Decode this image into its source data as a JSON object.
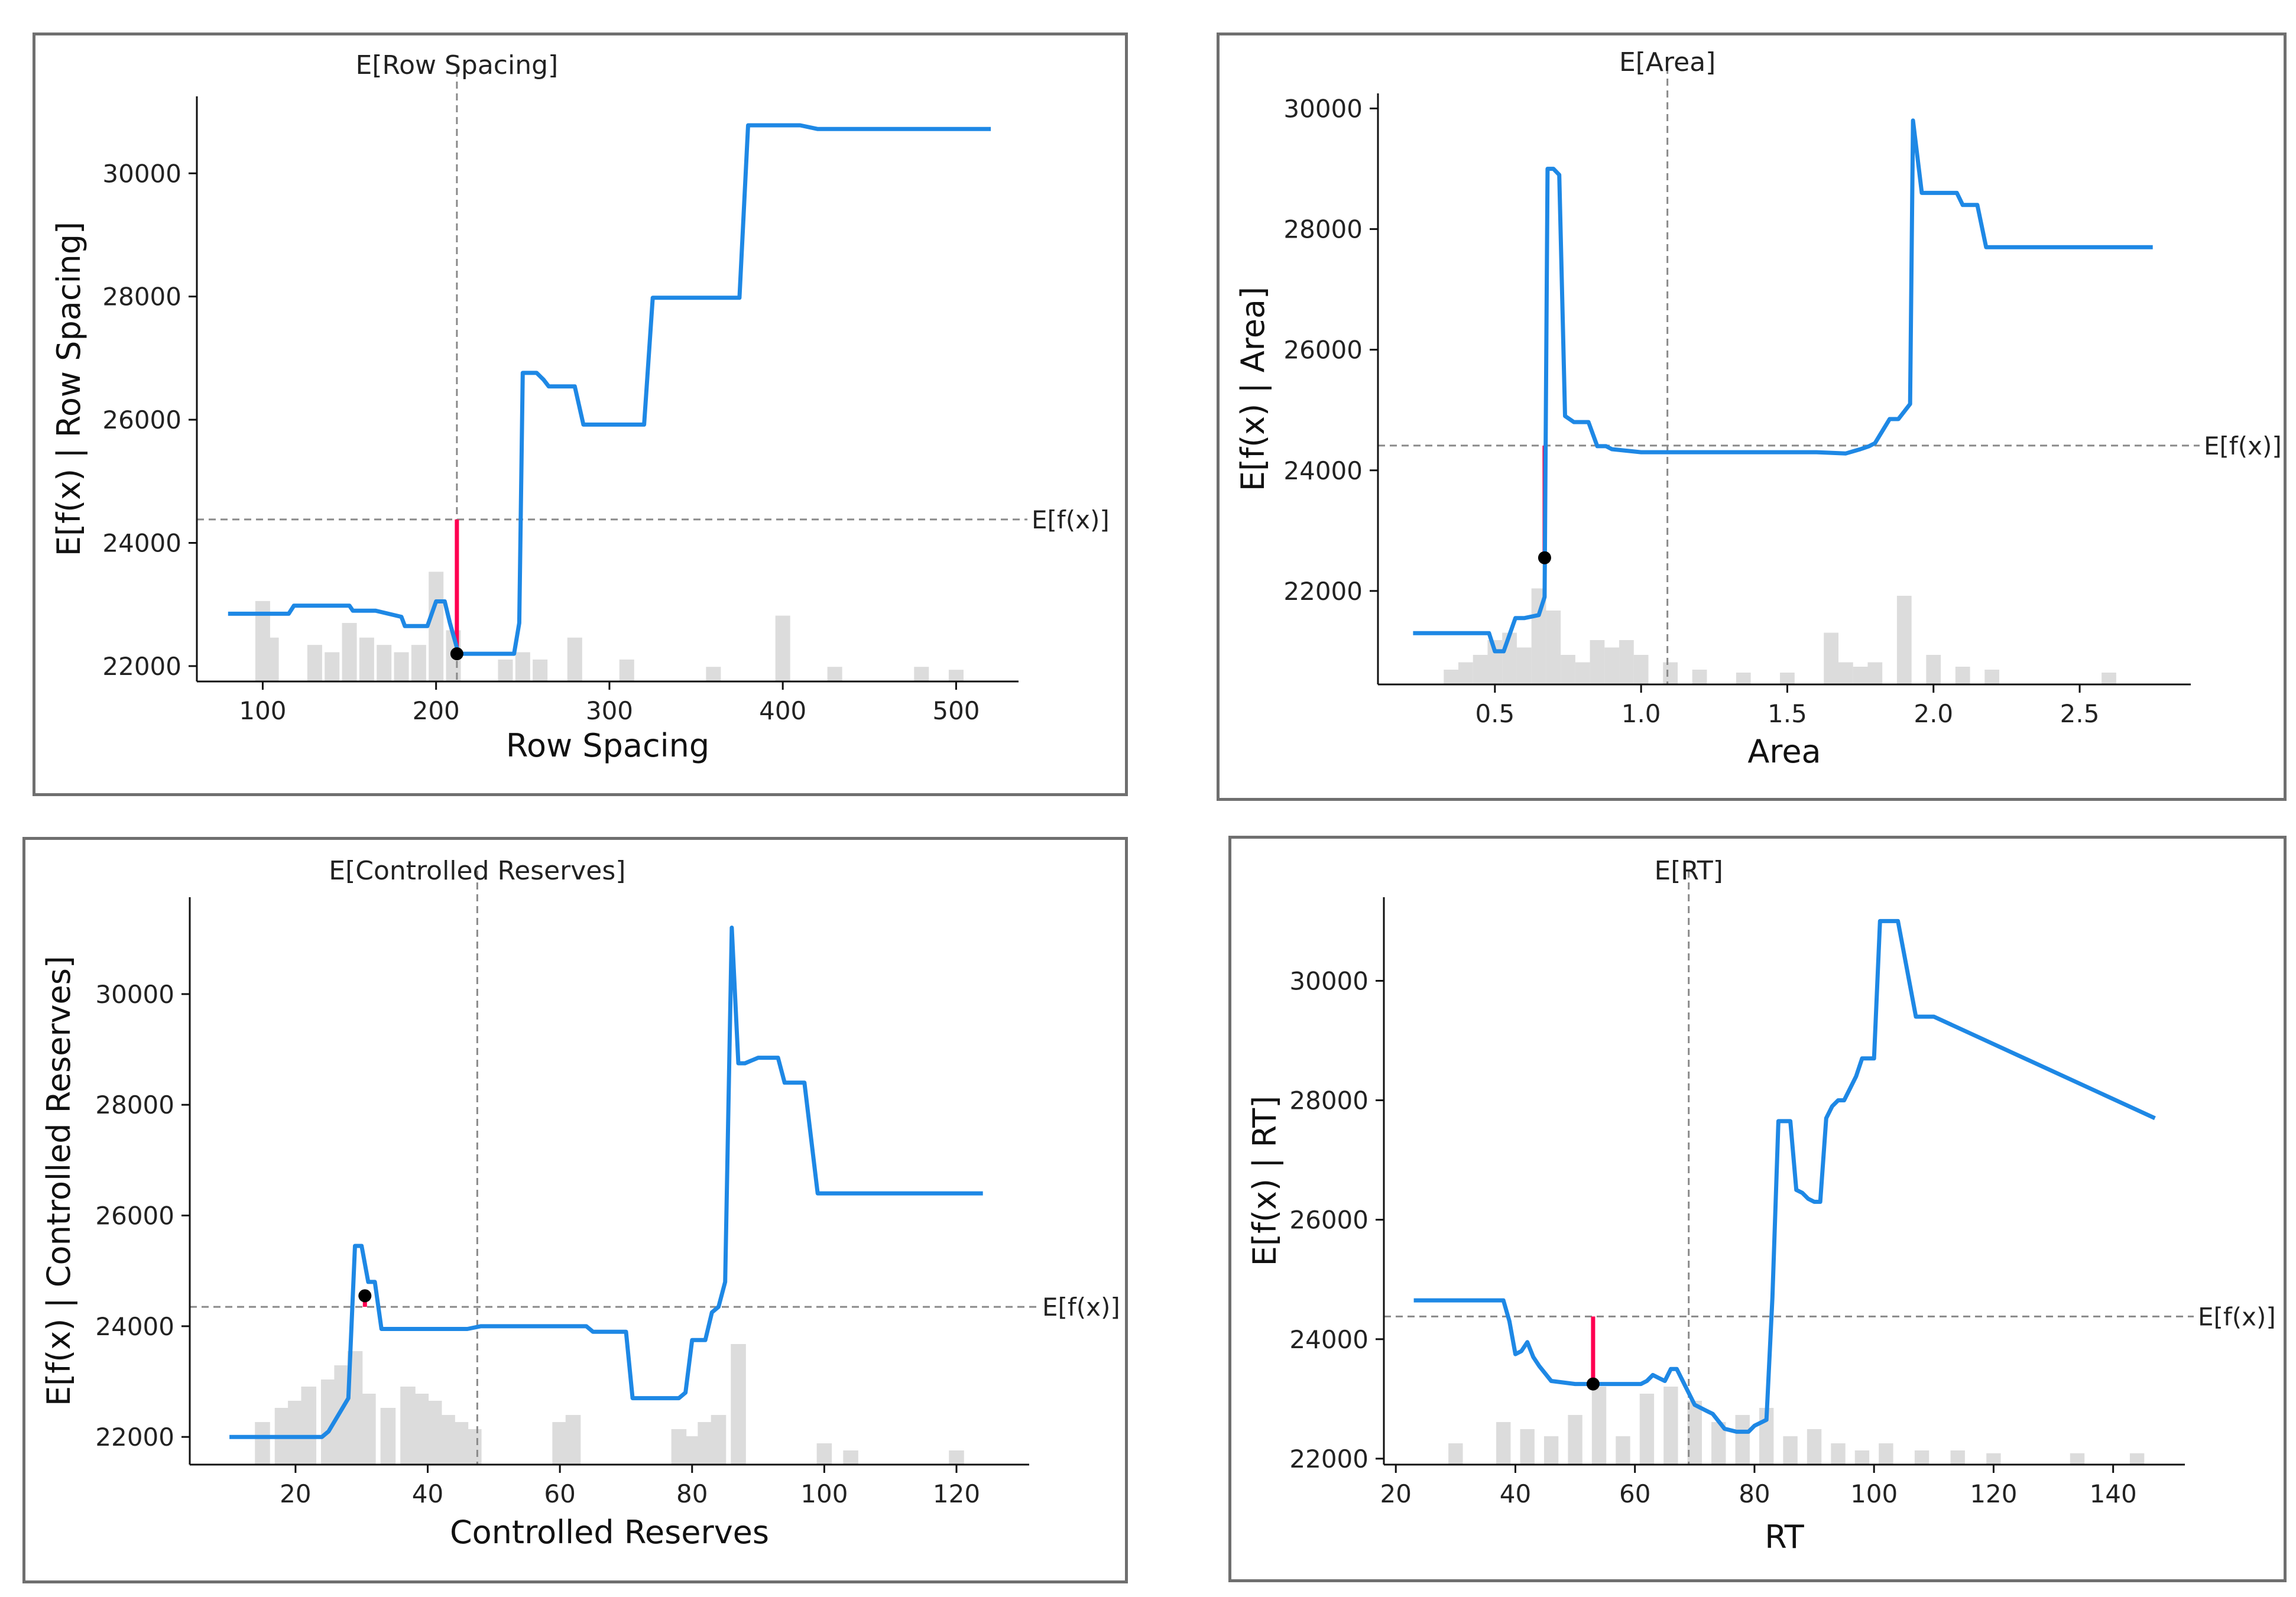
{
  "chart_data": [
    {
      "type": "line",
      "title": "E[Row Spacing]",
      "xlabel": "Row Spacing",
      "ylabel": "E[f(x) | Row Spacing]",
      "efx_label": "E[f(x)]",
      "xlim": [
        62,
        536
      ],
      "ylim": [
        21750,
        31250
      ],
      "xticks": [
        100,
        200,
        300,
        400,
        500
      ],
      "xtick_labels": [
        "100",
        "200",
        "300",
        "400",
        "500"
      ],
      "yticks": [
        22000,
        24000,
        26000,
        28000,
        30000
      ],
      "ytick_labels": [
        "22000",
        "24000",
        "26000",
        "28000",
        "30000"
      ],
      "expected_value_x": 212,
      "efx": 24380,
      "line": {
        "x": [
          80,
          115,
          118,
          135,
          150,
          152,
          165,
          180,
          182,
          195,
          200,
          205,
          208,
          213,
          220,
          240,
          245,
          248,
          250,
          255,
          258,
          262,
          265,
          280,
          285,
          300,
          315,
          320,
          325,
          345,
          375,
          380,
          390,
          400,
          410,
          420,
          520
        ],
        "y": [
          22850,
          22850,
          22980,
          22980,
          22980,
          22900,
          22900,
          22800,
          22650,
          22650,
          23050,
          23050,
          22700,
          22200,
          22200,
          22200,
          22200,
          22700,
          26760,
          26760,
          26760,
          26650,
          26540,
          26540,
          25920,
          25920,
          25920,
          25920,
          27980,
          27980,
          27980,
          30780,
          30780,
          30780,
          30780,
          30720,
          30720
        ]
      },
      "instance": {
        "x": 212,
        "y": 22200
      },
      "hist": {
        "x": [
          100,
          105,
          130,
          140,
          150,
          160,
          170,
          180,
          190,
          200,
          210,
          240,
          250,
          260,
          280,
          310,
          360,
          400,
          430,
          480,
          500
        ],
        "h": [
          0.55,
          0.3,
          0.25,
          0.2,
          0.4,
          0.3,
          0.25,
          0.2,
          0.25,
          0.75,
          0.35,
          0.15,
          0.2,
          0.15,
          0.3,
          0.15,
          0.1,
          0.45,
          0.1,
          0.1,
          0.08
        ]
      }
    },
    {
      "type": "line",
      "title": "E[Area]",
      "xlabel": "Area",
      "ylabel": "E[f(x) | Area]",
      "efx_label": "E[f(x)]",
      "xlim": [
        0.1,
        2.88
      ],
      "ylim": [
        20450,
        30250
      ],
      "xticks": [
        0.5,
        1.0,
        1.5,
        2.0,
        2.5
      ],
      "xtick_labels": [
        "0.5",
        "1.0",
        "1.5",
        "2.0",
        "2.5"
      ],
      "yticks": [
        22000,
        24000,
        26000,
        28000,
        30000
      ],
      "ytick_labels": [
        "22000",
        "24000",
        "26000",
        "28000",
        "30000"
      ],
      "expected_value_x": 1.09,
      "efx": 24410,
      "line": {
        "x": [
          0.22,
          0.45,
          0.48,
          0.5,
          0.53,
          0.57,
          0.6,
          0.65,
          0.67,
          0.68,
          0.7,
          0.72,
          0.74,
          0.77,
          0.8,
          0.82,
          0.85,
          0.88,
          0.9,
          1.0,
          1.2,
          1.4,
          1.6,
          1.7,
          1.75,
          1.78,
          1.8,
          1.85,
          1.88,
          1.92,
          1.93,
          1.96,
          2.08,
          2.1,
          2.15,
          2.18,
          2.75
        ],
        "y": [
          21300,
          21300,
          21300,
          21000,
          21000,
          21550,
          21550,
          21600,
          21900,
          29000,
          29000,
          28900,
          24900,
          24800,
          24800,
          24800,
          24400,
          24400,
          24350,
          24300,
          24300,
          24300,
          24300,
          24280,
          24350,
          24400,
          24450,
          24850,
          24850,
          25100,
          29800,
          28600,
          28600,
          28400,
          28400,
          27700,
          27700
        ]
      },
      "instance": {
        "x": 0.67,
        "y": 22550
      },
      "hist": {
        "x": [
          0.35,
          0.4,
          0.45,
          0.5,
          0.55,
          0.6,
          0.65,
          0.7,
          0.75,
          0.8,
          0.85,
          0.9,
          0.95,
          1.0,
          1.1,
          1.2,
          1.35,
          1.5,
          1.65,
          1.7,
          1.75,
          1.8,
          1.9,
          2.0,
          2.1,
          2.2,
          2.6
        ],
        "h": [
          0.1,
          0.15,
          0.2,
          0.3,
          0.35,
          0.25,
          0.65,
          0.5,
          0.2,
          0.15,
          0.3,
          0.25,
          0.3,
          0.2,
          0.15,
          0.1,
          0.08,
          0.08,
          0.35,
          0.15,
          0.12,
          0.15,
          0.6,
          0.2,
          0.12,
          0.1,
          0.08
        ]
      }
    },
    {
      "type": "line",
      "title": "E[Controlled Reserves]",
      "xlabel": "Controlled Reserves",
      "ylabel": "E[f(x) | Controlled Reserves]",
      "efx_label": "E[f(x)]",
      "xlim": [
        4,
        131
      ],
      "ylim": [
        21500,
        31750
      ],
      "xticks": [
        20,
        40,
        60,
        80,
        100,
        120
      ],
      "xtick_labels": [
        "20",
        "40",
        "60",
        "80",
        "100",
        "120"
      ],
      "yticks": [
        22000,
        24000,
        26000,
        28000,
        30000
      ],
      "ytick_labels": [
        "22000",
        "24000",
        "26000",
        "28000",
        "30000"
      ],
      "expected_value_x": 47.5,
      "efx": 24350,
      "line": {
        "x": [
          10,
          24,
          25,
          27,
          28,
          29,
          30,
          31,
          32,
          33,
          46,
          48,
          55,
          64,
          65,
          70,
          71,
          74,
          76,
          78,
          79,
          80,
          82,
          83,
          84,
          85,
          86,
          87,
          88,
          90,
          93,
          94,
          97,
          99,
          100,
          124
        ],
        "y": [
          22000,
          22000,
          22100,
          22500,
          22700,
          25450,
          25450,
          24800,
          24800,
          23950,
          23950,
          24000,
          24000,
          24000,
          23900,
          23900,
          22700,
          22700,
          22700,
          22700,
          22800,
          23750,
          23750,
          24250,
          24350,
          24800,
          31200,
          28750,
          28750,
          28850,
          28850,
          28400,
          28400,
          26400,
          26400,
          26400
        ]
      },
      "instance": {
        "x": 30.5,
        "y": 24550
      },
      "hist": {
        "x": [
          15,
          18,
          20,
          22,
          25,
          27,
          29,
          31,
          34,
          37,
          39,
          41,
          43,
          45,
          47,
          60,
          62,
          78,
          80,
          82,
          84,
          87,
          100,
          104,
          120
        ],
        "h": [
          0.3,
          0.4,
          0.45,
          0.55,
          0.6,
          0.7,
          0.8,
          0.5,
          0.4,
          0.55,
          0.5,
          0.45,
          0.35,
          0.3,
          0.25,
          0.3,
          0.35,
          0.25,
          0.2,
          0.3,
          0.35,
          0.85,
          0.15,
          0.1,
          0.1
        ]
      }
    },
    {
      "type": "line",
      "title": "E[RT]",
      "xlabel": "RT",
      "ylabel": "E[f(x) | RT]",
      "efx_label": "E[f(x)]",
      "xlim": [
        18,
        152
      ],
      "ylim": [
        21900,
        31400
      ],
      "xticks": [
        20,
        40,
        60,
        80,
        100,
        120,
        140
      ],
      "xtick_labels": [
        "20",
        "40",
        "60",
        "80",
        "100",
        "120",
        "140"
      ],
      "yticks": [
        22000,
        24000,
        26000,
        28000,
        30000
      ],
      "ytick_labels": [
        "22000",
        "24000",
        "26000",
        "28000",
        "30000"
      ],
      "expected_value_x": 69,
      "efx": 24380,
      "line": {
        "x": [
          23,
          38,
          39,
          40,
          41,
          42,
          43,
          44,
          46,
          50,
          55,
          58,
          60,
          61,
          62,
          63,
          64,
          65,
          66,
          67,
          68,
          69,
          70,
          71,
          72,
          73,
          75,
          77,
          78,
          79,
          80,
          82,
          83,
          84,
          85,
          86,
          87,
          88,
          89,
          90,
          91,
          92,
          93,
          94,
          95,
          96,
          97,
          98,
          100,
          101,
          103,
          104,
          107,
          108,
          110,
          147
        ],
        "y": [
          24650,
          24650,
          24300,
          23750,
          23800,
          23950,
          23700,
          23550,
          23300,
          23250,
          23250,
          23250,
          23250,
          23250,
          23300,
          23400,
          23350,
          23300,
          23500,
          23500,
          23300,
          23100,
          22900,
          22850,
          22800,
          22750,
          22500,
          22450,
          22450,
          22450,
          22550,
          22650,
          24700,
          27650,
          27650,
          27650,
          26500,
          26450,
          26350,
          26300,
          26300,
          27700,
          27900,
          28000,
          28000,
          28200,
          28400,
          28700,
          28700,
          31000,
          31000,
          31000,
          29400,
          29400,
          29400,
          27700
        ]
      },
      "instance": {
        "x": 53,
        "y": 23250
      },
      "hist": {
        "x": [
          30,
          38,
          42,
          46,
          50,
          54,
          58,
          62,
          66,
          70,
          74,
          78,
          82,
          86,
          90,
          94,
          98,
          102,
          108,
          114,
          120,
          134,
          144
        ],
        "h": [
          0.15,
          0.3,
          0.25,
          0.2,
          0.35,
          0.55,
          0.2,
          0.5,
          0.55,
          0.45,
          0.3,
          0.35,
          0.4,
          0.2,
          0.25,
          0.15,
          0.1,
          0.15,
          0.1,
          0.1,
          0.08,
          0.08,
          0.08
        ]
      }
    }
  ]
}
